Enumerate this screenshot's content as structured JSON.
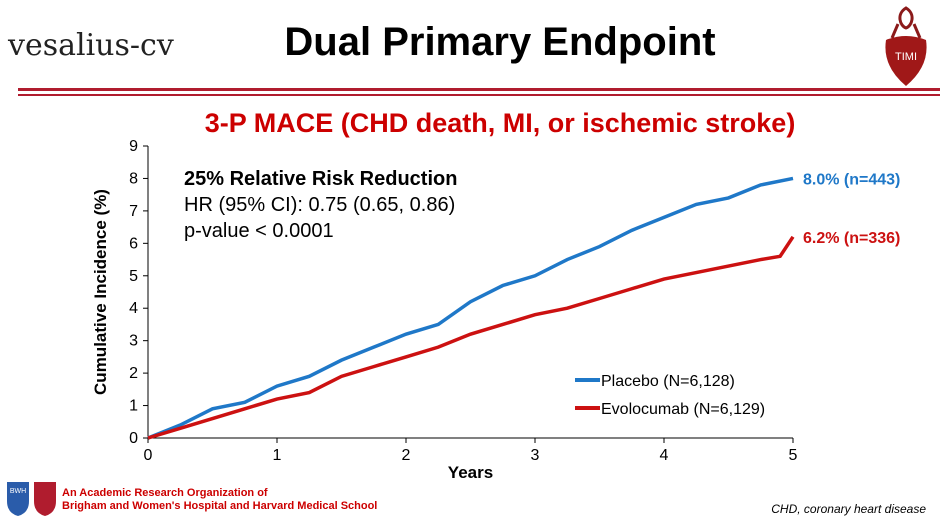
{
  "header": {
    "logo_text": "vesalius-cv",
    "title": "Dual Primary Endpoint",
    "timi_logo": "TIMI"
  },
  "subtitle": "3-P MACE (CHD death, MI, or ischemic stroke)",
  "stats": {
    "line1": "25% Relative Risk Reduction",
    "line2": "HR (95% CI): 0.75 (0.65, 0.86)",
    "line3": "p-value < 0.0001"
  },
  "footer": {
    "org_line1": "An Academic Research Organization of",
    "org_line2": "Brigham and Women's Hospital and Harvard Medical School",
    "bwh_logo": "BWH",
    "note": "CHD, coronary heart disease"
  },
  "chart_data": {
    "type": "line",
    "xlabel": "Years",
    "ylabel": "Cumulative Incidence (%)",
    "xlim": [
      0,
      5
    ],
    "ylim": [
      0,
      9
    ],
    "xticks": [
      0,
      1,
      2,
      3,
      4,
      5
    ],
    "yticks": [
      0,
      1,
      2,
      3,
      4,
      5,
      6,
      7,
      8,
      9
    ],
    "legend_placement": "bottom-right",
    "series": [
      {
        "name": "Placebo (N=6,128)",
        "color": "#1f78c8",
        "end_label": "8.0% (n=443)",
        "x": [
          0,
          0.25,
          0.5,
          0.75,
          1,
          1.25,
          1.5,
          1.75,
          2,
          2.25,
          2.5,
          2.75,
          3,
          3.25,
          3.5,
          3.75,
          4,
          4.25,
          4.5,
          4.75,
          5
        ],
        "y": [
          0,
          0.4,
          0.9,
          1.1,
          1.6,
          1.9,
          2.4,
          2.8,
          3.2,
          3.5,
          4.2,
          4.7,
          5.0,
          5.5,
          5.9,
          6.4,
          6.8,
          7.2,
          7.4,
          7.8,
          8.0
        ]
      },
      {
        "name": "Evolocumab  (N=6,129)",
        "color": "#cc1111",
        "end_label": "6.2% (n=336)",
        "x": [
          0,
          0.25,
          0.5,
          0.75,
          1,
          1.25,
          1.5,
          1.75,
          2,
          2.25,
          2.5,
          2.75,
          3,
          3.25,
          3.5,
          3.75,
          4,
          4.25,
          4.5,
          4.75,
          4.9,
          5
        ],
        "y": [
          0,
          0.3,
          0.6,
          0.9,
          1.2,
          1.4,
          1.9,
          2.2,
          2.5,
          2.8,
          3.2,
          3.5,
          3.8,
          4.0,
          4.3,
          4.6,
          4.9,
          5.1,
          5.3,
          5.5,
          5.6,
          6.2
        ]
      }
    ]
  }
}
